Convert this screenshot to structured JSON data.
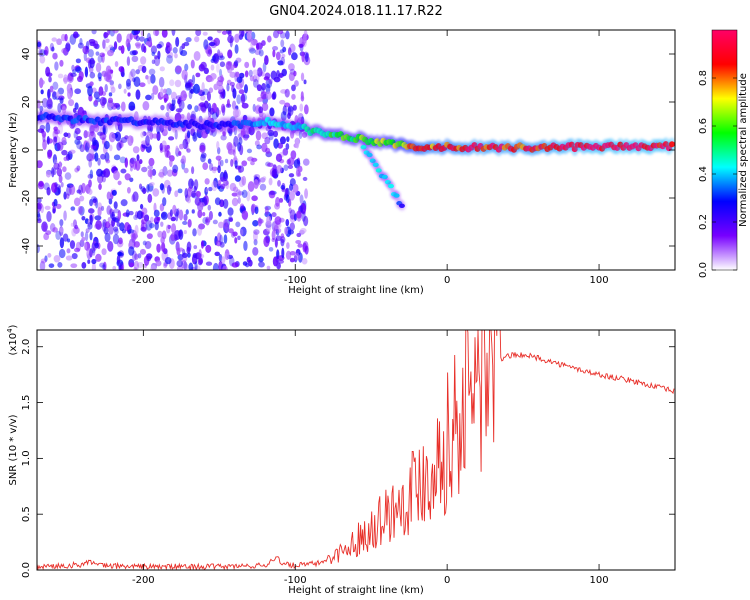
{
  "title": "GN04.2024.018.11.17.R22",
  "chart_data": [
    {
      "type": "heatmap",
      "xlabel": "Height of straight line (km)",
      "ylabel": "Frequency (Hz)",
      "xlim": [
        -270,
        150
      ],
      "ylim": [
        -50,
        50
      ],
      "xticks": [
        -200,
        -100,
        0,
        100
      ],
      "xtick_labels": [
        "-200",
        "-100",
        "0",
        "100"
      ],
      "yticks": [
        -40,
        -20,
        0,
        20,
        40
      ],
      "ytick_labels": [
        "-40",
        "-20",
        "0",
        "20",
        "40"
      ],
      "grid": false,
      "colorbar": {
        "label": "Normalized spectral amplitude",
        "range": [
          0,
          1
        ],
        "ticks": [
          0.0,
          0.2,
          0.4,
          0.6,
          0.8
        ],
        "tick_labels": [
          "0.0",
          "0.2",
          "0.4",
          "0.6",
          "0.8"
        ],
        "colors": [
          "#ffffff",
          "#7700ff",
          "#0000ff",
          "#00ffff",
          "#00ff00",
          "#ffff00",
          "#ff0000",
          "#ff0066"
        ]
      },
      "noise_region_x": [
        -270,
        -92
      ],
      "noise_amplitude": [
        0.05,
        0.3
      ],
      "ridge": [
        {
          "x": -270,
          "freq": 14,
          "amp": 0.3
        },
        {
          "x": -250,
          "freq": 13,
          "amp": 0.32
        },
        {
          "x": -230,
          "freq": 12,
          "amp": 0.3
        },
        {
          "x": -200,
          "freq": 12,
          "amp": 0.28
        },
        {
          "x": -150,
          "freq": 10,
          "amp": 0.28
        },
        {
          "x": -120,
          "freq": 12,
          "amp": 0.4
        },
        {
          "x": -100,
          "freq": 10,
          "amp": 0.4
        },
        {
          "x": -90,
          "freq": 8,
          "amp": 0.5
        },
        {
          "x": -70,
          "freq": 6,
          "amp": 0.55
        },
        {
          "x": -50,
          "freq": 4,
          "amp": 0.6
        },
        {
          "x": -30,
          "freq": 2,
          "amp": 0.7
        },
        {
          "x": -15,
          "freq": 1,
          "amp": 0.85
        },
        {
          "x": 0,
          "freq": 1.5,
          "amp": 0.85
        },
        {
          "x": 20,
          "freq": 1,
          "amp": 0.9
        },
        {
          "x": 60,
          "freq": 1,
          "amp": 0.9
        },
        {
          "x": 100,
          "freq": 1.5,
          "amp": 0.95
        },
        {
          "x": 150,
          "freq": 1.5,
          "amp": 0.95
        }
      ],
      "branch": [
        {
          "x": -55,
          "freq": 1,
          "amp": 0.4
        },
        {
          "x": -45,
          "freq": -8,
          "amp": 0.4
        },
        {
          "x": -35,
          "freq": -18,
          "amp": 0.4
        },
        {
          "x": -28,
          "freq": -25,
          "amp": 0.2
        }
      ]
    },
    {
      "type": "line",
      "xlabel": "Height of straight line (km)",
      "ylabel": "SNR (10 * v/v)",
      "y_multiplier": "(x10",
      "y_multiplier_exponent": "4",
      "y_multiplier_close": ")",
      "xlim": [
        -270,
        150
      ],
      "ylim": [
        0,
        2.15
      ],
      "xticks": [
        -200,
        -100,
        0,
        100
      ],
      "xtick_labels": [
        "-200",
        "-100",
        "0",
        "100"
      ],
      "yticks": [
        0.0,
        0.5,
        1.0,
        1.5,
        2.0
      ],
      "ytick_labels": [
        "0.0",
        "0.5",
        "1.0",
        "1.5",
        "2.0"
      ],
      "grid": false,
      "series_color": "#e8302a",
      "series": [
        {
          "x": [
            -270,
            -250,
            -240,
            -236,
            -230,
            -200,
            -150,
            -120,
            -112,
            -108,
            -100,
            -85,
            -75,
            -65,
            -55,
            -45,
            -35,
            -25,
            -15,
            -5,
            5,
            15,
            25,
            30,
            40,
            50,
            60,
            80,
            100,
            120,
            150
          ],
          "y": [
            0.03,
            0.04,
            0.05,
            0.08,
            0.04,
            0.03,
            0.03,
            0.04,
            0.12,
            0.05,
            0.04,
            0.06,
            0.12,
            0.2,
            0.32,
            0.45,
            0.55,
            0.7,
            0.85,
            1.0,
            1.3,
            1.6,
            1.75,
            1.85,
            1.92,
            1.93,
            1.9,
            1.82,
            1.75,
            1.7,
            1.6
          ]
        }
      ]
    }
  ]
}
